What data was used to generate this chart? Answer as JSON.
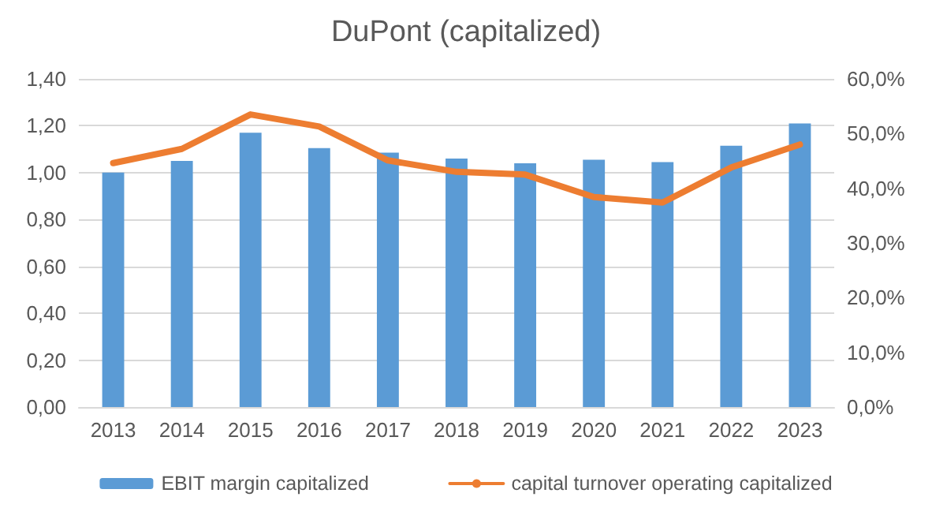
{
  "chart_data": {
    "type": "bar",
    "title": "DuPont (capitalized)",
    "categories": [
      "2013",
      "2014",
      "2015",
      "2016",
      "2017",
      "2018",
      "2019",
      "2020",
      "2021",
      "2022",
      "2023"
    ],
    "series": [
      {
        "name": "EBIT margin capitalized",
        "color": "#5b9bd5",
        "values": [
          1.0,
          1.05,
          1.17,
          1.105,
          1.085,
          1.06,
          1.04,
          1.055,
          1.045,
          1.115,
          1.21
        ]
      },
      {
        "name": "capital turnover operating capitalized",
        "type": "line",
        "axis": "y2",
        "color": "#ed7d31",
        "values": [
          44.6,
          47.2,
          53.5,
          51.3,
          45.1,
          43.0,
          42.5,
          38.4,
          37.4,
          43.8,
          48.0
        ]
      }
    ],
    "ylim": [
      0,
      1.4
    ],
    "yticks": [
      {
        "value": 0,
        "label": "0,00"
      },
      {
        "value": 0.2,
        "label": "0,20"
      },
      {
        "value": 0.4,
        "label": "0,40"
      },
      {
        "value": 0.6,
        "label": "0,60"
      },
      {
        "value": 0.8,
        "label": "0,80"
      },
      {
        "value": 1.0,
        "label": "1,00"
      },
      {
        "value": 1.2,
        "label": "1,20"
      },
      {
        "value": 1.4,
        "label": "1,40"
      }
    ],
    "y2lim": [
      0,
      60
    ],
    "y2ticks": [
      {
        "value": 0,
        "label": "0,0%"
      },
      {
        "value": 10,
        "label": "10,0%"
      },
      {
        "value": 20,
        "label": "20,0%"
      },
      {
        "value": 30,
        "label": "30,0%"
      },
      {
        "value": 40,
        "label": "40,0%"
      },
      {
        "value": 50,
        "label": "50,0%"
      },
      {
        "value": 60,
        "label": "60,0%"
      }
    ],
    "grid": "y",
    "legend": "bottom",
    "marker": "none",
    "line_style": "solid"
  }
}
